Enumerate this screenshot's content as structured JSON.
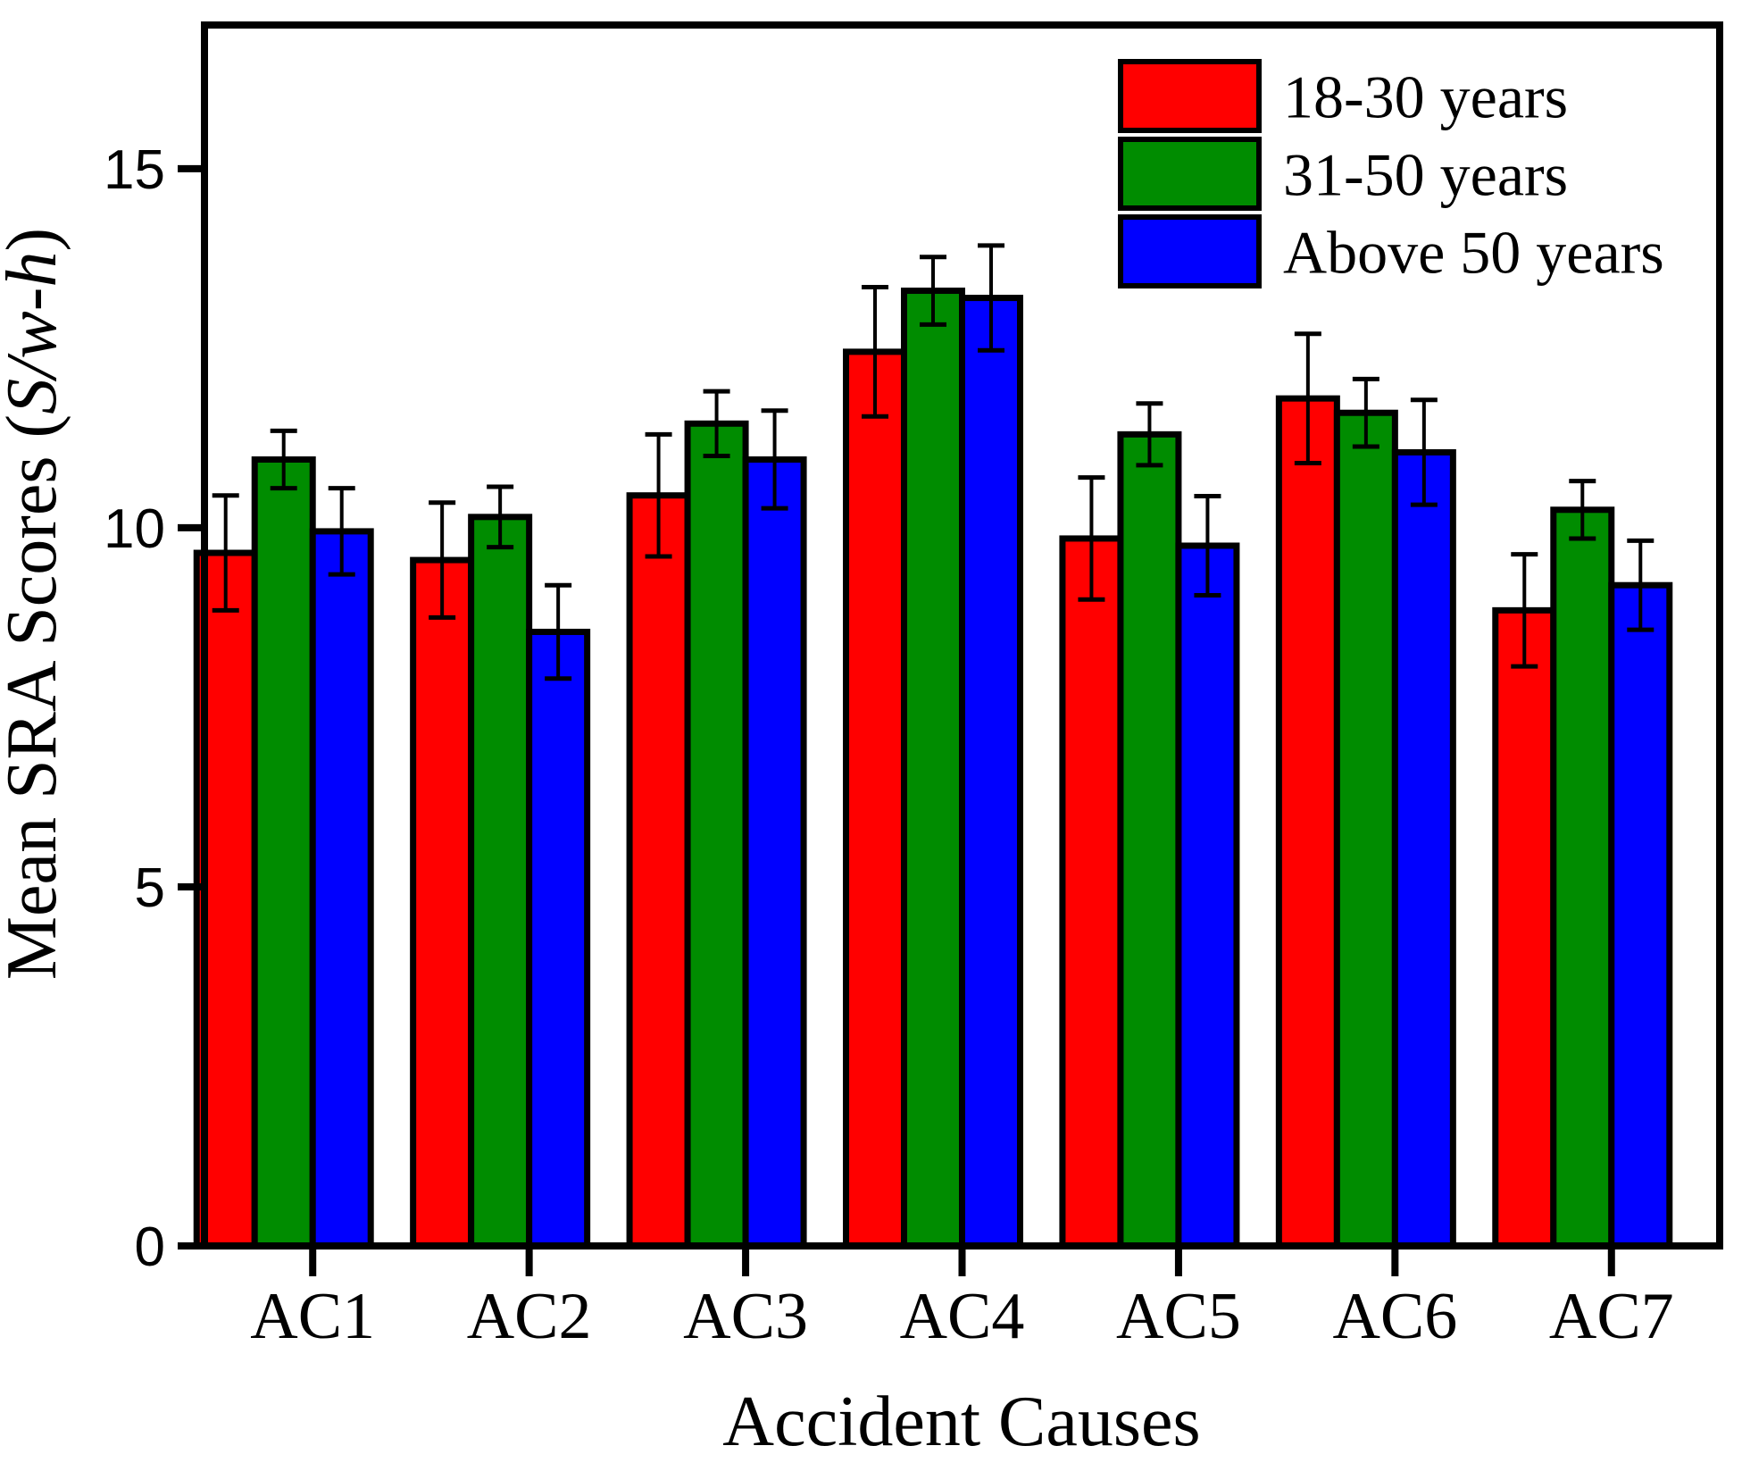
{
  "figure": {
    "y_axis_title": {
      "prefix": "Mean SRA Scores (",
      "italic": "S/w-h",
      "suffix": ")"
    },
    "x_axis_title": "Accident Causes"
  },
  "chart_data": {
    "type": "bar",
    "title": "",
    "xlabel": "Accident Causes",
    "ylabel": "Mean SRA Scores (S/w-h)",
    "categories": [
      "AC1",
      "AC2",
      "AC3",
      "AC4",
      "AC5",
      "AC6",
      "AC7"
    ],
    "series": [
      {
        "name": "18-30 years",
        "color": "#FF0000",
        "values": [
          9.65,
          9.55,
          10.45,
          12.45,
          9.85,
          11.8,
          8.85
        ],
        "errors": [
          0.8,
          0.8,
          0.85,
          0.9,
          0.85,
          0.9,
          0.78
        ]
      },
      {
        "name": "31-50 years",
        "color": "#008C00",
        "values": [
          10.95,
          10.15,
          11.45,
          13.3,
          11.3,
          11.6,
          10.25
        ],
        "errors": [
          0.4,
          0.42,
          0.45,
          0.47,
          0.43,
          0.47,
          0.4
        ]
      },
      {
        "name": "Above 50 years",
        "color": "#0000FF",
        "values": [
          9.95,
          8.55,
          10.95,
          13.2,
          9.75,
          11.05,
          9.2
        ],
        "errors": [
          0.6,
          0.65,
          0.68,
          0.73,
          0.69,
          0.73,
          0.62
        ]
      }
    ],
    "y_ticks": [
      0,
      5,
      10,
      15
    ],
    "ylim": [
      0,
      17
    ],
    "grid": false,
    "error_bars": true,
    "legend_position": "top-right-inside",
    "axis_color": "#000000",
    "background_color": "#FFFFFF"
  }
}
